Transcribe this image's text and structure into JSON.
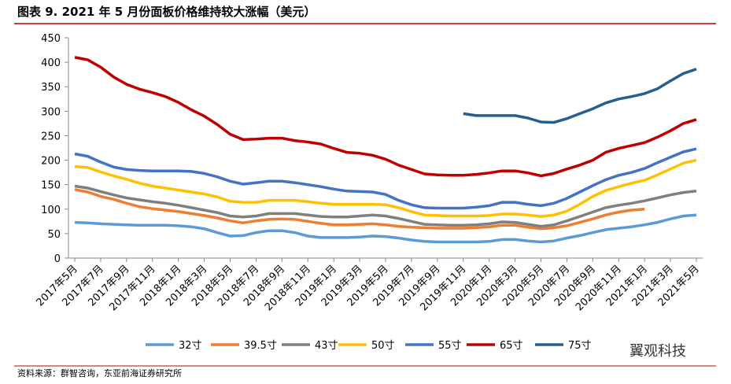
{
  "chart_data": {
    "type": "line",
    "title": "图表 9.  2021 年 5 月份面板价格维持较大涨幅（美元）",
    "source": "资料来源：群智咨询，东亚前海证券研究所",
    "watermark": "翼观科技",
    "categories": [
      "2017年5月",
      null,
      "2017年7月",
      null,
      "2017年9月",
      null,
      "2017年11月",
      null,
      "2018年1月",
      null,
      "2018年3月",
      null,
      "2018年5月",
      null,
      "2018年7月",
      null,
      "2018年9月",
      null,
      "2018年11月",
      null,
      "2019年1月",
      null,
      "2019年3月",
      null,
      "2019年5月",
      null,
      "2019年7月",
      null,
      "2019年9月",
      null,
      "2019年11月",
      null,
      "2020年1月",
      null,
      "2020年3月",
      null,
      "2020年5月",
      null,
      "2020年7月",
      null,
      "2020年9月",
      null,
      "2020年11月",
      null,
      "2021年1月",
      null,
      "2021年3月",
      null,
      "2021年5月"
    ],
    "ylim": [
      0,
      450
    ],
    "yticks": [
      0,
      50,
      100,
      150,
      200,
      250,
      300,
      350,
      400,
      450
    ],
    "legend": "bottom",
    "series": [
      {
        "name": "32寸",
        "color": "#5b9bd5",
        "values": [
          73,
          72,
          70,
          69,
          68,
          67,
          67,
          67,
          66,
          64,
          60,
          52,
          45,
          46,
          52,
          56,
          56,
          52,
          45,
          42,
          42,
          42,
          43,
          45,
          44,
          41,
          37,
          34,
          33,
          33,
          33,
          33,
          34,
          38,
          38,
          35,
          33,
          35,
          41,
          46,
          52,
          58,
          61,
          64,
          68,
          73,
          80,
          86,
          88
        ]
      },
      {
        "name": "39.5寸",
        "color": "#ed7d31",
        "values": [
          140,
          135,
          126,
          120,
          112,
          105,
          101,
          98,
          95,
          91,
          87,
          82,
          76,
          72,
          76,
          79,
          80,
          79,
          75,
          71,
          68,
          68,
          69,
          70,
          68,
          65,
          63,
          62,
          61,
          61,
          61,
          62,
          64,
          67,
          67,
          63,
          60,
          62,
          66,
          73,
          80,
          88,
          94,
          98,
          100,
          null,
          null,
          null,
          null
        ]
      },
      {
        "name": "43寸",
        "color": "#7f7f7f",
        "values": [
          147,
          143,
          136,
          129,
          123,
          119,
          115,
          112,
          108,
          103,
          98,
          93,
          86,
          84,
          86,
          91,
          91,
          91,
          88,
          85,
          84,
          84,
          86,
          88,
          86,
          81,
          75,
          69,
          68,
          67,
          67,
          68,
          70,
          74,
          73,
          69,
          65,
          68,
          76,
          85,
          94,
          103,
          108,
          112,
          117,
          123,
          129,
          134,
          137
        ]
      },
      {
        "name": "50寸",
        "color": "#ffc000",
        "values": [
          187,
          185,
          176,
          168,
          161,
          153,
          147,
          143,
          139,
          135,
          131,
          125,
          116,
          114,
          114,
          118,
          118,
          118,
          115,
          112,
          110,
          110,
          110,
          110,
          109,
          103,
          95,
          88,
          87,
          86,
          86,
          86,
          87,
          90,
          90,
          88,
          85,
          88,
          96,
          110,
          126,
          138,
          146,
          153,
          159,
          170,
          182,
          194,
          200
        ]
      },
      {
        "name": "55寸",
        "color": "#4472c4",
        "values": [
          213,
          208,
          196,
          186,
          181,
          179,
          178,
          178,
          178,
          177,
          173,
          166,
          157,
          151,
          154,
          157,
          157,
          154,
          150,
          146,
          141,
          137,
          136,
          135,
          130,
          118,
          109,
          103,
          102,
          102,
          102,
          104,
          107,
          114,
          114,
          110,
          107,
          112,
          122,
          135,
          148,
          160,
          169,
          175,
          183,
          195,
          206,
          217,
          223
        ]
      },
      {
        "name": "65寸",
        "color": "#c00000",
        "values": [
          410,
          405,
          390,
          370,
          355,
          345,
          338,
          330,
          318,
          303,
          290,
          273,
          253,
          242,
          243,
          245,
          245,
          240,
          237,
          233,
          224,
          216,
          214,
          210,
          202,
          190,
          181,
          172,
          170,
          169,
          169,
          171,
          174,
          178,
          178,
          174,
          168,
          173,
          182,
          190,
          200,
          216,
          224,
          230,
          236,
          247,
          260,
          275,
          283
        ]
      },
      {
        "name": "75寸",
        "color": "#255e91",
        "values": [
          null,
          null,
          null,
          null,
          null,
          null,
          null,
          null,
          null,
          null,
          null,
          null,
          null,
          null,
          null,
          null,
          null,
          null,
          null,
          null,
          null,
          null,
          null,
          null,
          null,
          null,
          null,
          null,
          null,
          null,
          295,
          291,
          291,
          291,
          291,
          286,
          278,
          277,
          285,
          295,
          305,
          317,
          325,
          330,
          336,
          346,
          362,
          377,
          386
        ]
      }
    ]
  }
}
